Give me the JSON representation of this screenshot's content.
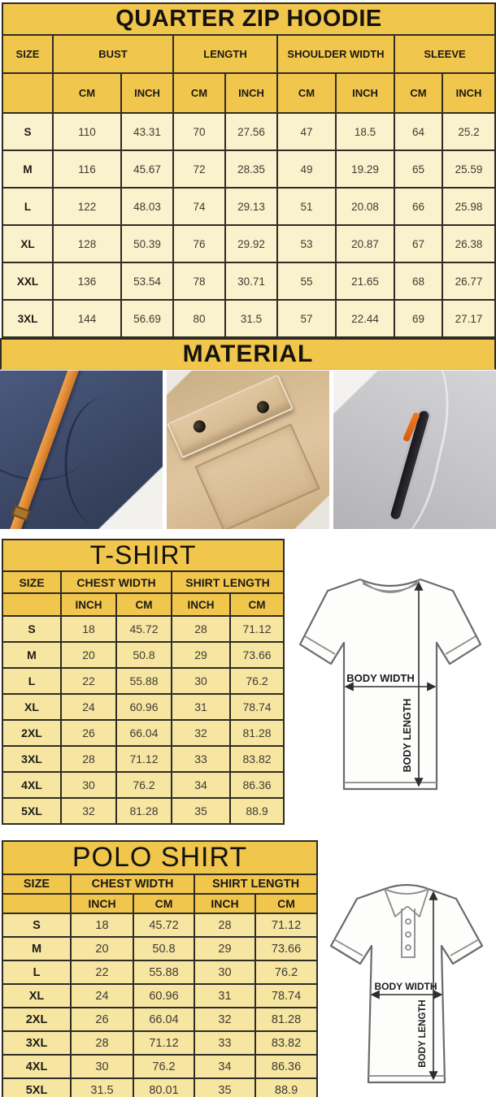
{
  "colors": {
    "header_yellow": "#f1c64d",
    "hoodie_row_cream": "#faf2cc",
    "shirt_row_gold": "#f6e6a2",
    "table_border": "#2f2c26",
    "photo_navy": "#3f4c6c",
    "photo_strap_orange": "#e08a35",
    "photo_khaki": "#d9bd95",
    "photo_gray": "#c6c6c9",
    "zip_pull_orange": "#e8681a"
  },
  "hoodie": {
    "title": "QUARTER ZIP HOODIE",
    "size_header": "SIZE",
    "group_headers": [
      "BUST",
      "LENGTH",
      "SHOULDER WIDTH",
      "SLEEVE"
    ],
    "unit_headers": [
      "CM",
      "INCH",
      "CM",
      "INCH",
      "CM",
      "INCH",
      "CM",
      "INCH"
    ],
    "rows": [
      {
        "size": "S",
        "values": [
          "110",
          "43.31",
          "70",
          "27.56",
          "47",
          "18.5",
          "64",
          "25.2"
        ]
      },
      {
        "size": "M",
        "values": [
          "116",
          "45.67",
          "72",
          "28.35",
          "49",
          "19.29",
          "65",
          "25.59"
        ]
      },
      {
        "size": "L",
        "values": [
          "122",
          "48.03",
          "74",
          "29.13",
          "51",
          "20.08",
          "66",
          "25.98"
        ]
      },
      {
        "size": "XL",
        "values": [
          "128",
          "50.39",
          "76",
          "29.92",
          "53",
          "20.87",
          "67",
          "26.38"
        ]
      },
      {
        "size": "XXL",
        "values": [
          "136",
          "53.54",
          "78",
          "30.71",
          "55",
          "21.65",
          "68",
          "26.77"
        ]
      },
      {
        "size": "3XL",
        "values": [
          "144",
          "56.69",
          "80",
          "31.5",
          "57",
          "22.44",
          "69",
          "27.17"
        ]
      }
    ]
  },
  "material": {
    "title": "MATERIAL",
    "photos": [
      {
        "name": "navy fleece with orange drawcord"
      },
      {
        "name": "khaki twill snap-flap pocket"
      },
      {
        "name": "heather grey fleece zip pocket"
      }
    ]
  },
  "tshirt": {
    "title": "T-SHIRT",
    "size_header": "SIZE",
    "group_headers": [
      "CHEST WIDTH",
      "SHIRT LENGTH"
    ],
    "unit_headers": [
      "INCH",
      "CM",
      "INCH",
      "CM"
    ],
    "rows": [
      {
        "size": "S",
        "values": [
          "18",
          "45.72",
          "28",
          "71.12"
        ]
      },
      {
        "size": "M",
        "values": [
          "20",
          "50.8",
          "29",
          "73.66"
        ]
      },
      {
        "size": "L",
        "values": [
          "22",
          "55.88",
          "30",
          "76.2"
        ]
      },
      {
        "size": "XL",
        "values": [
          "24",
          "60.96",
          "31",
          "78.74"
        ]
      },
      {
        "size": "2XL",
        "values": [
          "26",
          "66.04",
          "32",
          "81.28"
        ]
      },
      {
        "size": "3XL",
        "values": [
          "28",
          "71.12",
          "33",
          "83.82"
        ]
      },
      {
        "size": "4XL",
        "values": [
          "30",
          "76.2",
          "34",
          "86.36"
        ]
      },
      {
        "size": "5XL",
        "values": [
          "32",
          "81.28",
          "35",
          "88.9"
        ]
      }
    ],
    "diagram": {
      "width_label": "BODY WIDTH",
      "length_label": "BODY LENGTH"
    }
  },
  "polo": {
    "title": "POLO SHIRT",
    "size_header": "SIZE",
    "group_headers": [
      "CHEST WIDTH",
      "SHIRT LENGTH"
    ],
    "unit_headers": [
      "INCH",
      "CM",
      "INCH",
      "CM"
    ],
    "rows": [
      {
        "size": "S",
        "values": [
          "18",
          "45.72",
          "28",
          "71.12"
        ]
      },
      {
        "size": "M",
        "values": [
          "20",
          "50.8",
          "29",
          "73.66"
        ]
      },
      {
        "size": "L",
        "values": [
          "22",
          "55.88",
          "30",
          "76.2"
        ]
      },
      {
        "size": "XL",
        "values": [
          "24",
          "60.96",
          "31",
          "78.74"
        ]
      },
      {
        "size": "2XL",
        "values": [
          "26",
          "66.04",
          "32",
          "81.28"
        ]
      },
      {
        "size": "3XL",
        "values": [
          "28",
          "71.12",
          "33",
          "83.82"
        ]
      },
      {
        "size": "4XL",
        "values": [
          "30",
          "76.2",
          "34",
          "86.36"
        ]
      },
      {
        "size": "5XL",
        "values": [
          "31.5",
          "80.01",
          "35",
          "88.9"
        ]
      }
    ],
    "diagram": {
      "width_label": "BODY WIDTH",
      "length_label": "BODY LENGTH"
    }
  }
}
